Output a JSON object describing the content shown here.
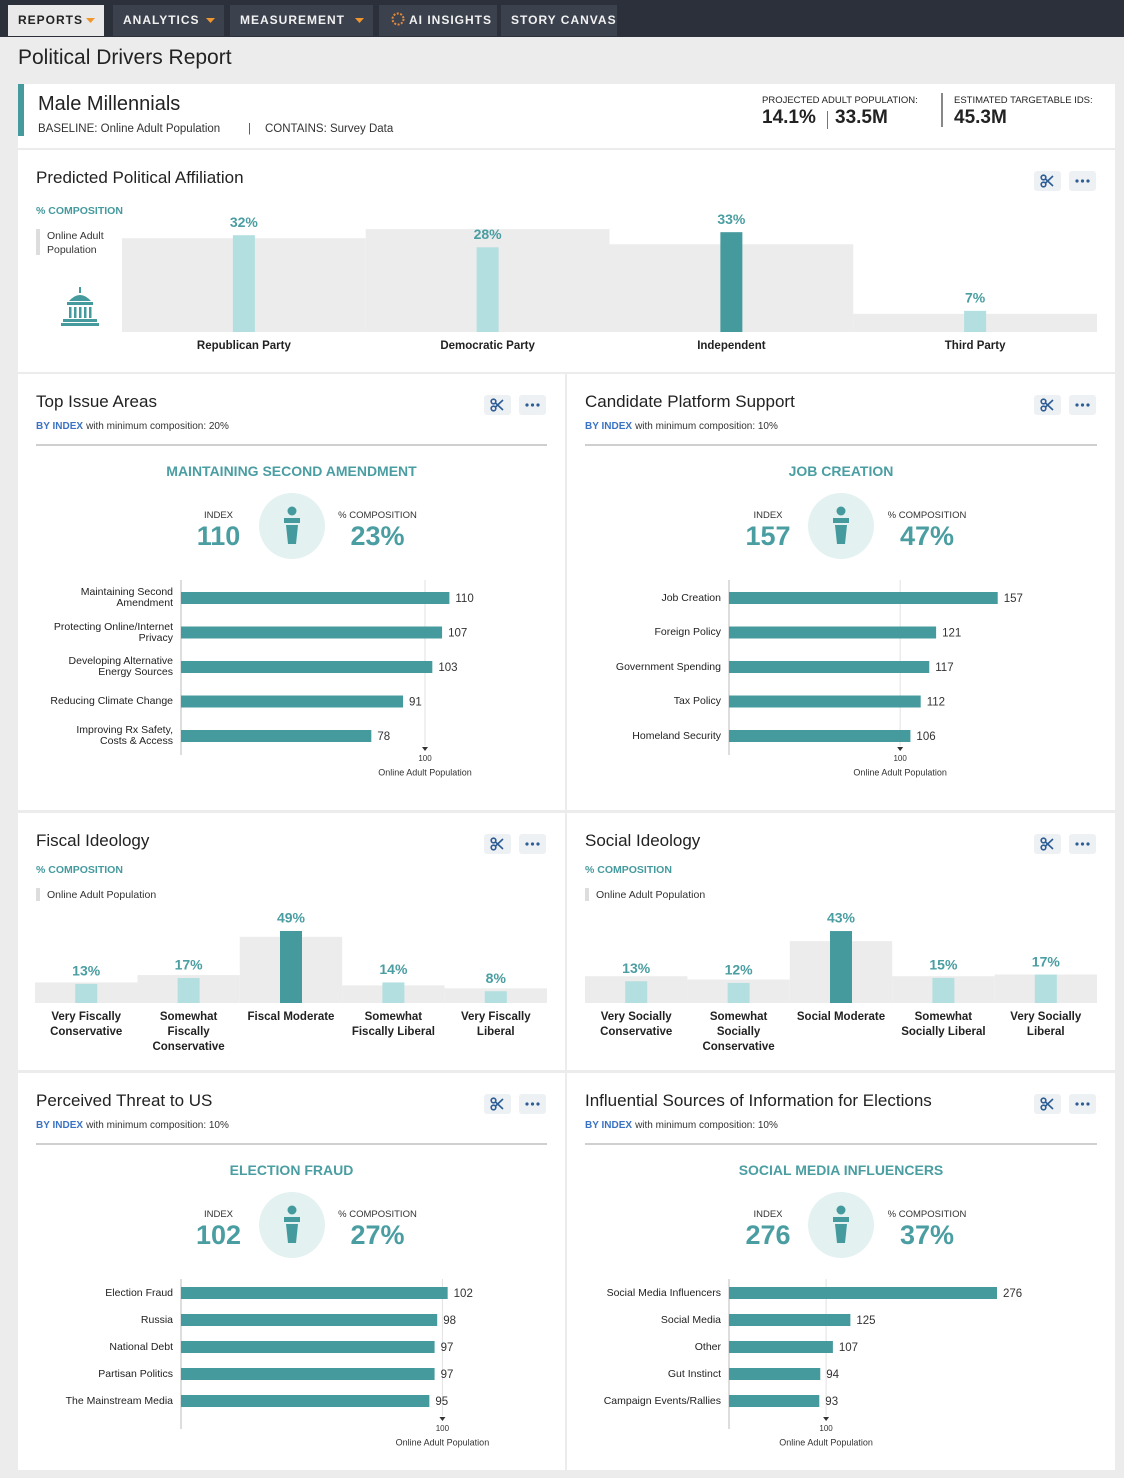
{
  "nav": {
    "items": [
      "REPORTS",
      "ANALYTICS",
      "MEASUREMENT",
      "AI INSIGHTS",
      "STORY CANVAS"
    ]
  },
  "page_title": "Political Drivers Report",
  "segment": {
    "name": "Male Millennials",
    "baseline": "BASELINE: Online Adult Population",
    "separator": "|",
    "contains": "CONTAINS: Survey Data",
    "population_label": "PROJECTED ADULT POPULATION:",
    "population_share": "14.1%",
    "population_count": "33.5M",
    "targetable_label": "ESTIMATED TARGETABLE IDS:",
    "targetable_count": "45.3M"
  },
  "chart_data": [
    {
      "type": "bar",
      "title": "Predicted Political Affiliation",
      "axis_label": "% COMPOSITION",
      "categories": [
        "Republican Party",
        "Democratic Party",
        "Independent",
        "Third Party"
      ],
      "values": [
        32,
        28,
        33,
        7
      ],
      "value_labels": [
        "32%",
        "28%",
        "33%",
        "7%"
      ],
      "colors": [
        "#b3dfe0",
        "#b3dfe0",
        "#459a9e",
        "#b3dfe0"
      ],
      "baseline": {
        "name": "Online Adult Population",
        "color": "#ececec",
        "values": [
          31,
          34,
          29,
          6
        ]
      },
      "ylim": [
        0,
        40
      ]
    },
    {
      "type": "hbar",
      "title": "Top Issue Areas",
      "subtitle_key": "BY INDEX",
      "subtitle": "with minimum composition: 20%",
      "highlight": {
        "name": "MAINTAINING SECOND AMENDMENT",
        "index_label": "INDEX",
        "index": 110,
        "composition_label": "% COMPOSITION",
        "composition": {
          "value": 23,
          "label": "23%"
        }
      },
      "categories": [
        "Maintaining Second Amendment",
        "Protecting Online/Internet Privacy",
        "Developing Alternative Energy Sources",
        "Reducing Climate Change",
        "Improving Rx Safety, Costs & Access"
      ],
      "values": [
        110,
        107,
        103,
        91,
        78
      ],
      "color": "#459a9e",
      "xlim": [
        0,
        150
      ],
      "reference": {
        "value": 100,
        "label": "Online Adult Population"
      }
    },
    {
      "type": "hbar",
      "title": "Candidate Platform Support",
      "subtitle_key": "BY INDEX",
      "subtitle": "with minimum composition: 10%",
      "highlight": {
        "name": "JOB CREATION",
        "index_label": "INDEX",
        "index": 157,
        "composition_label": "% COMPOSITION",
        "composition": {
          "value": 47,
          "label": "47%"
        }
      },
      "categories": [
        "Job Creation",
        "Foreign Policy",
        "Government Spending",
        "Tax Policy",
        "Homeland Security"
      ],
      "values": [
        157,
        121,
        117,
        112,
        106
      ],
      "color": "#459a9e",
      "xlim": [
        0,
        215
      ],
      "reference": {
        "value": 100,
        "label": "Online Adult Population"
      }
    },
    {
      "type": "bar",
      "title": "Fiscal Ideology",
      "axis_label": "% COMPOSITION",
      "categories": [
        "Very Fiscally Conservative",
        "Somewhat Fiscally Conservative",
        "Fiscal Moderate",
        "Somewhat Fiscally Liberal",
        "Very Fiscally Liberal"
      ],
      "values": [
        13,
        17,
        49,
        14,
        8
      ],
      "value_labels": [
        "13%",
        "17%",
        "49%",
        "14%",
        "8%"
      ],
      "colors": [
        "#b3dfe0",
        "#b3dfe0",
        "#459a9e",
        "#b3dfe0",
        "#b3dfe0"
      ],
      "baseline": {
        "name": "Online Adult Population",
        "color": "#ececec",
        "values": [
          14,
          19,
          45,
          12,
          10
        ]
      },
      "ylim": [
        0,
        50
      ]
    },
    {
      "type": "bar",
      "title": "Social Ideology",
      "axis_label": "% COMPOSITION",
      "categories": [
        "Very Socially Conservative",
        "Somewhat Socially Conservative",
        "Social Moderate",
        "Somewhat Socially Liberal",
        "Very Socially Liberal"
      ],
      "values": [
        13,
        12,
        43,
        15,
        17
      ],
      "value_labels": [
        "13%",
        "12%",
        "43%",
        "15%",
        "17%"
      ],
      "colors": [
        "#b3dfe0",
        "#b3dfe0",
        "#459a9e",
        "#b3dfe0",
        "#b3dfe0"
      ],
      "baseline": {
        "name": "Online Adult Population",
        "color": "#ececec",
        "values": [
          16,
          14,
          37,
          16,
          17
        ]
      },
      "ylim": [
        0,
        45
      ]
    },
    {
      "type": "hbar",
      "title": "Perceived Threat to US",
      "subtitle_key": "BY INDEX",
      "subtitle": "with minimum composition: 10%",
      "highlight": {
        "name": "ELECTION FRAUD",
        "index_label": "INDEX",
        "index": 102,
        "composition_label": "% COMPOSITION",
        "composition": {
          "value": 27,
          "label": "27%"
        }
      },
      "categories": [
        "Election Fraud",
        "Russia",
        "National Debt",
        "Partisan Politics",
        "The Mainstream Media"
      ],
      "values": [
        102,
        98,
        97,
        97,
        95
      ],
      "color": "#459a9e",
      "xlim": [
        0,
        140
      ],
      "reference": {
        "value": 100,
        "label": "Online Adult Population"
      }
    },
    {
      "type": "hbar",
      "title": "Influential Sources of Information for Elections",
      "subtitle_key": "BY INDEX",
      "subtitle": "with minimum composition: 10%",
      "highlight": {
        "name": "SOCIAL MEDIA INFLUENCERS",
        "index_label": "INDEX",
        "index": 276,
        "composition_label": "% COMPOSITION",
        "composition": {
          "value": 37,
          "label": "37%"
        }
      },
      "categories": [
        "Social Media Influencers",
        "Social Media",
        "Other",
        "Gut Instinct",
        "Campaign Events/Rallies"
      ],
      "values": [
        276,
        125,
        107,
        94,
        93
      ],
      "color": "#459a9e",
      "xlim": [
        0,
        379
      ],
      "reference": {
        "value": 100,
        "label": "Online Adult Population"
      }
    }
  ]
}
